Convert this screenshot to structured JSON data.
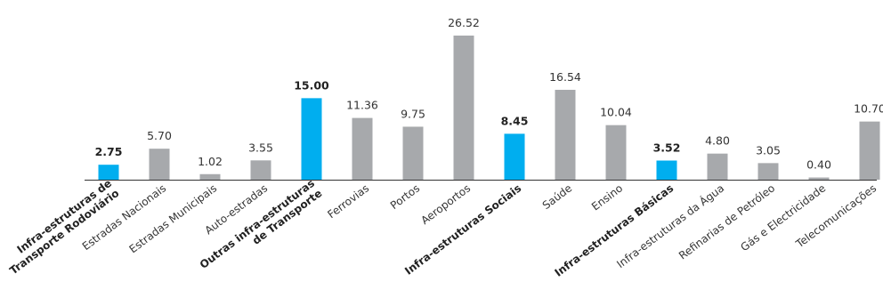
{
  "chart_data": {
    "type": "bar",
    "title": "",
    "xlabel": "",
    "ylabel": "",
    "ylim": [
      0,
      26.52
    ],
    "grid": false,
    "colors": {
      "highlight": "#00AEEF",
      "default": "#A7A9AC",
      "axis": "#333333"
    },
    "categories": [
      [
        "Infra-estruturas de",
        "Transporte Rodoviário"
      ],
      [
        "Estradas Nacionais"
      ],
      [
        "Estradas Municipais"
      ],
      [
        "Auto-estradas"
      ],
      [
        "Outras infra-estruturas",
        "de Transporte"
      ],
      [
        "Ferrovias"
      ],
      [
        "Portos"
      ],
      [
        "Aeroportos"
      ],
      [
        "Infra-estruturas Sociais"
      ],
      [
        "Saúde"
      ],
      [
        "Ensino"
      ],
      [
        "Infra-estruturas Básicas"
      ],
      [
        "Infra-estruturas da Água"
      ],
      [
        "Refinarias de Petróleo"
      ],
      [
        "Gás e Electricidade"
      ],
      [
        "Telecomunicações"
      ]
    ],
    "values": [
      2.75,
      5.7,
      1.02,
      3.55,
      15.0,
      11.36,
      9.75,
      26.52,
      8.45,
      16.54,
      10.04,
      3.52,
      4.8,
      3.05,
      0.4,
      10.7
    ],
    "value_labels": [
      "2.75",
      "5.70",
      "1.02",
      "3.55",
      "15.00",
      "11.36",
      "9.75",
      "26.52",
      "8.45",
      "16.54",
      "10.04",
      "3.52",
      "4.80",
      "3.05",
      "0.40",
      "10.70"
    ],
    "highlighted": [
      true,
      false,
      false,
      false,
      true,
      false,
      false,
      false,
      true,
      false,
      false,
      true,
      false,
      false,
      false,
      false
    ]
  }
}
